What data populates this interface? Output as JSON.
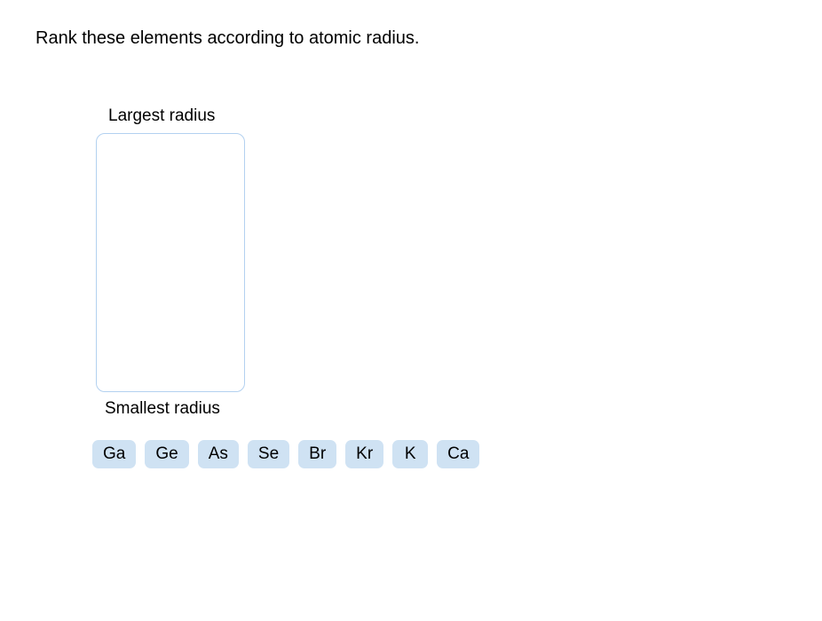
{
  "question": {
    "text": "Rank these elements according to atomic radius."
  },
  "ranking": {
    "topLabel": "Largest radius",
    "bottomLabel": "Smallest radius"
  },
  "elements": {
    "items": [
      {
        "symbol": "Ga"
      },
      {
        "symbol": "Ge"
      },
      {
        "symbol": "As"
      },
      {
        "symbol": "Se"
      },
      {
        "symbol": "Br"
      },
      {
        "symbol": "Kr"
      },
      {
        "symbol": "K"
      },
      {
        "symbol": "Ca"
      }
    ]
  },
  "styling": {
    "background_color": "#ffffff",
    "text_color": "#000000",
    "tile_background": "#cfe2f3",
    "tile_border_radius": 7,
    "dropzone_border_color": "#b3d1f0",
    "dropzone_border_radius": 10,
    "dropzone_width": 168,
    "dropzone_height": 292,
    "question_fontsize": 20,
    "label_fontsize": 19,
    "tile_fontsize": 19
  }
}
